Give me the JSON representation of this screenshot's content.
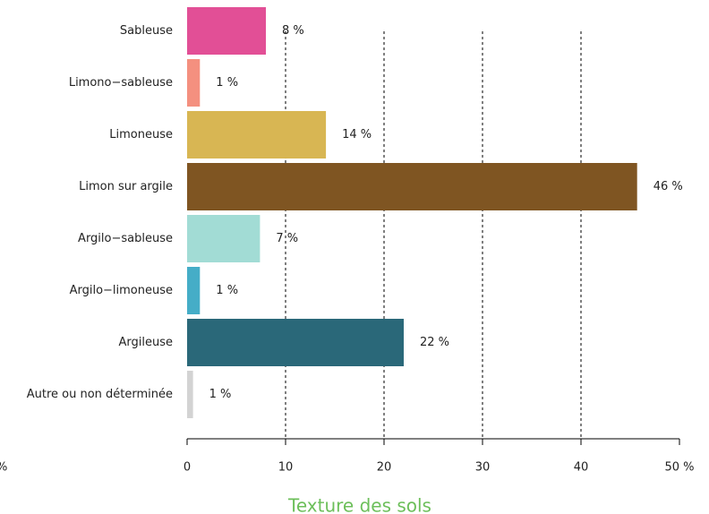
{
  "chart_data": {
    "type": "hbar",
    "title": "Texture des sols",
    "annotation": "%",
    "categories": [
      "Sableuse",
      "Limono−sableuse",
      "Limoneuse",
      "Limon sur argile",
      "Argilo−sableuse",
      "Argilo−limoneuse",
      "Argileuse",
      "Autre ou non déterminée"
    ],
    "values": [
      8,
      1.3,
      14.1,
      45.7,
      7.4,
      1.3,
      22,
      0.6
    ],
    "value_labels": [
      "8 %",
      "1 %",
      "14 %",
      "46 %",
      "7 %",
      "1 %",
      "22 %",
      "1 %"
    ],
    "colors": [
      "#e24f96",
      "#f4907f",
      "#d8b653",
      "#7f5522",
      "#a2dcd5",
      "#45adc7",
      "#2a6879",
      "#d3d3d3"
    ],
    "xlim": [
      0,
      50
    ],
    "xticks": [
      0,
      10,
      20,
      30,
      40,
      {
        "value": 50,
        "label": "50 %"
      }
    ],
    "grid": true
  }
}
